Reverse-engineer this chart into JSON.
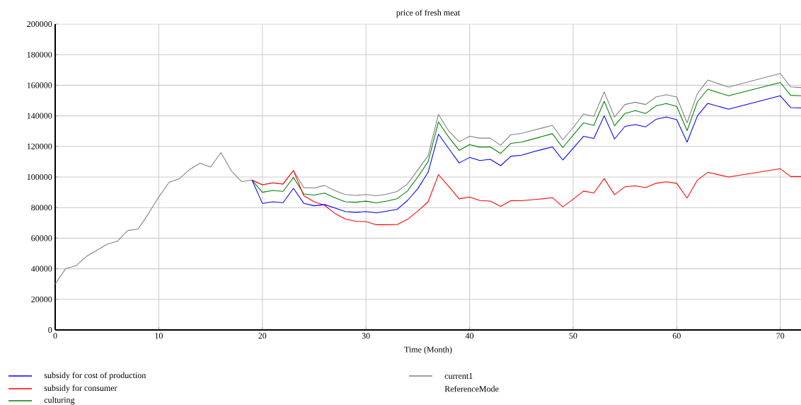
{
  "chart_data": {
    "type": "line",
    "title": "price of fresh meat",
    "xlabel": "Time (Month)",
    "x": [
      0,
      1,
      2,
      3,
      4,
      5,
      6,
      7,
      8,
      9,
      10,
      11,
      12,
      13,
      14,
      15,
      16,
      17,
      18,
      19,
      20,
      21,
      22,
      23,
      24,
      25,
      26,
      27,
      28,
      29,
      30,
      31,
      32,
      33,
      34,
      35,
      36,
      37,
      38,
      39,
      40,
      41,
      42,
      43,
      44,
      45,
      46,
      47,
      48,
      49,
      50,
      51,
      52,
      53,
      54,
      55,
      56,
      57,
      58,
      59,
      60,
      61,
      62,
      63,
      65,
      70,
      71,
      72
    ],
    "series": [
      {
        "name": "subsidy for cost of production",
        "color": "#0000ff",
        "values": [
          null,
          null,
          null,
          null,
          null,
          null,
          null,
          null,
          null,
          null,
          null,
          null,
          null,
          null,
          null,
          null,
          null,
          null,
          null,
          98000,
          82800,
          83800,
          83200,
          92600,
          82800,
          81200,
          82000,
          79700,
          77400,
          76900,
          77400,
          76600,
          77700,
          78800,
          84600,
          92300,
          103100,
          128000,
          118500,
          109200,
          112800,
          110800,
          111600,
          107400,
          113600,
          114200,
          116200,
          118000,
          119700,
          111100,
          118800,
          126600,
          125200,
          140000,
          124900,
          133100,
          134300,
          132800,
          137700,
          139200,
          137500,
          122800,
          140000,
          148200,
          144300,
          153100,
          145400,
          145100
        ]
      },
      {
        "name": "subsidy for consumer",
        "color": "#ff0000",
        "values": [
          null,
          null,
          null,
          null,
          null,
          null,
          null,
          null,
          null,
          null,
          null,
          null,
          null,
          null,
          null,
          null,
          null,
          null,
          null,
          98000,
          94900,
          96200,
          95400,
          104300,
          87700,
          83800,
          81500,
          76200,
          72600,
          71100,
          70800,
          68800,
          68800,
          68900,
          72300,
          77700,
          83800,
          101500,
          93800,
          85700,
          86900,
          84600,
          84300,
          80800,
          84600,
          84500,
          85100,
          85700,
          86500,
          80500,
          85500,
          90800,
          89600,
          98900,
          88500,
          93600,
          94200,
          93100,
          95900,
          96900,
          95900,
          86200,
          98000,
          103100,
          100000,
          105400,
          100300,
          100300
        ]
      },
      {
        "name": "culturing",
        "color": "#008000",
        "values": [
          null,
          null,
          null,
          null,
          null,
          null,
          null,
          null,
          null,
          null,
          null,
          null,
          null,
          null,
          null,
          null,
          null,
          null,
          null,
          98000,
          90000,
          91200,
          90600,
          99700,
          88900,
          88200,
          89500,
          86500,
          83800,
          83500,
          84200,
          83100,
          84300,
          85800,
          90800,
          100000,
          110000,
          136000,
          126000,
          117400,
          121200,
          119500,
          119700,
          115400,
          122000,
          122800,
          124600,
          126500,
          128300,
          119200,
          127400,
          135400,
          133800,
          149500,
          133500,
          141500,
          143400,
          141500,
          146500,
          148000,
          146200,
          130300,
          149200,
          157400,
          153100,
          161800,
          153400,
          153100
        ]
      },
      {
        "name": "current1",
        "color": "#808080",
        "values": [
          30000,
          40000,
          42000,
          48000,
          52000,
          56000,
          58000,
          65000,
          66000,
          76000,
          87000,
          96500,
          99000,
          105000,
          109000,
          106500,
          116000,
          104000,
          97000,
          98000,
          94900,
          96200,
          95400,
          104300,
          93100,
          92800,
          94500,
          91100,
          88500,
          88000,
          88500,
          87700,
          88800,
          90500,
          95400,
          104600,
          113800,
          141000,
          130000,
          123100,
          126600,
          125400,
          125400,
          120800,
          127700,
          128500,
          130300,
          132000,
          133800,
          124300,
          132300,
          141200,
          139700,
          155700,
          139200,
          147400,
          148900,
          147400,
          152300,
          153800,
          152300,
          135400,
          154600,
          163400,
          158800,
          167700,
          158900,
          158500
        ]
      }
    ],
    "annotations": [
      "ReferenceMode"
    ],
    "xlim": [
      0,
      72
    ],
    "xticks": [
      0,
      10,
      20,
      30,
      40,
      50,
      60,
      70
    ],
    "ylim": [
      0,
      200000
    ],
    "yticks": [
      0,
      20000,
      40000,
      60000,
      80000,
      100000,
      120000,
      140000,
      160000,
      180000,
      200000
    ],
    "grid": true,
    "legend": "bottom",
    "marker": "none",
    "line_style": "solid"
  }
}
